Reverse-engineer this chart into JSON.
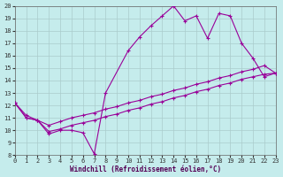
{
  "background_color": "#c5ecec",
  "grid_color": "#aacccc",
  "line_color": "#990099",
  "xlabel": "Windchill (Refroidissement éolien,°C)",
  "xlim": [
    0,
    23
  ],
  "ylim": [
    8,
    20
  ],
  "xticks": [
    0,
    1,
    2,
    3,
    4,
    5,
    6,
    7,
    8,
    9,
    10,
    11,
    12,
    13,
    14,
    15,
    16,
    17,
    18,
    19,
    20,
    21,
    22,
    23
  ],
  "yticks": [
    8,
    9,
    10,
    11,
    12,
    13,
    14,
    15,
    16,
    17,
    18,
    19,
    20
  ],
  "wavy_x": [
    0,
    1,
    2,
    3,
    4,
    5,
    6,
    7,
    8,
    10,
    11,
    12,
    13,
    14,
    15,
    16,
    17,
    18,
    19,
    20,
    21,
    22,
    23
  ],
  "wavy_y": [
    12.2,
    11.0,
    10.8,
    9.7,
    10.0,
    10.0,
    9.8,
    8.1,
    13.0,
    16.4,
    17.5,
    18.4,
    19.2,
    20.0,
    18.8,
    19.2,
    17.4,
    19.4,
    19.2,
    17.0,
    15.8,
    14.3,
    14.6
  ],
  "diag1_x": [
    0,
    1,
    2,
    3,
    4,
    5,
    6,
    7,
    8,
    9,
    10,
    11,
    12,
    13,
    14,
    15,
    16,
    17,
    18,
    19,
    20,
    21,
    22,
    23
  ],
  "diag1_y": [
    12.2,
    11.2,
    10.8,
    10.4,
    10.7,
    11.0,
    11.2,
    11.4,
    11.7,
    11.9,
    12.2,
    12.4,
    12.7,
    12.9,
    13.2,
    13.4,
    13.7,
    13.9,
    14.2,
    14.4,
    14.7,
    14.9,
    15.2,
    14.6
  ],
  "diag2_x": [
    0,
    1,
    2,
    3,
    4,
    5,
    6,
    7,
    8,
    9,
    10,
    11,
    12,
    13,
    14,
    15,
    16,
    17,
    18,
    19,
    20,
    21,
    22,
    23
  ],
  "diag2_y": [
    12.2,
    11.0,
    10.8,
    9.9,
    10.1,
    10.4,
    10.6,
    10.8,
    11.1,
    11.3,
    11.6,
    11.8,
    12.1,
    12.3,
    12.6,
    12.8,
    13.1,
    13.3,
    13.6,
    13.8,
    14.1,
    14.3,
    14.5,
    14.6
  ]
}
